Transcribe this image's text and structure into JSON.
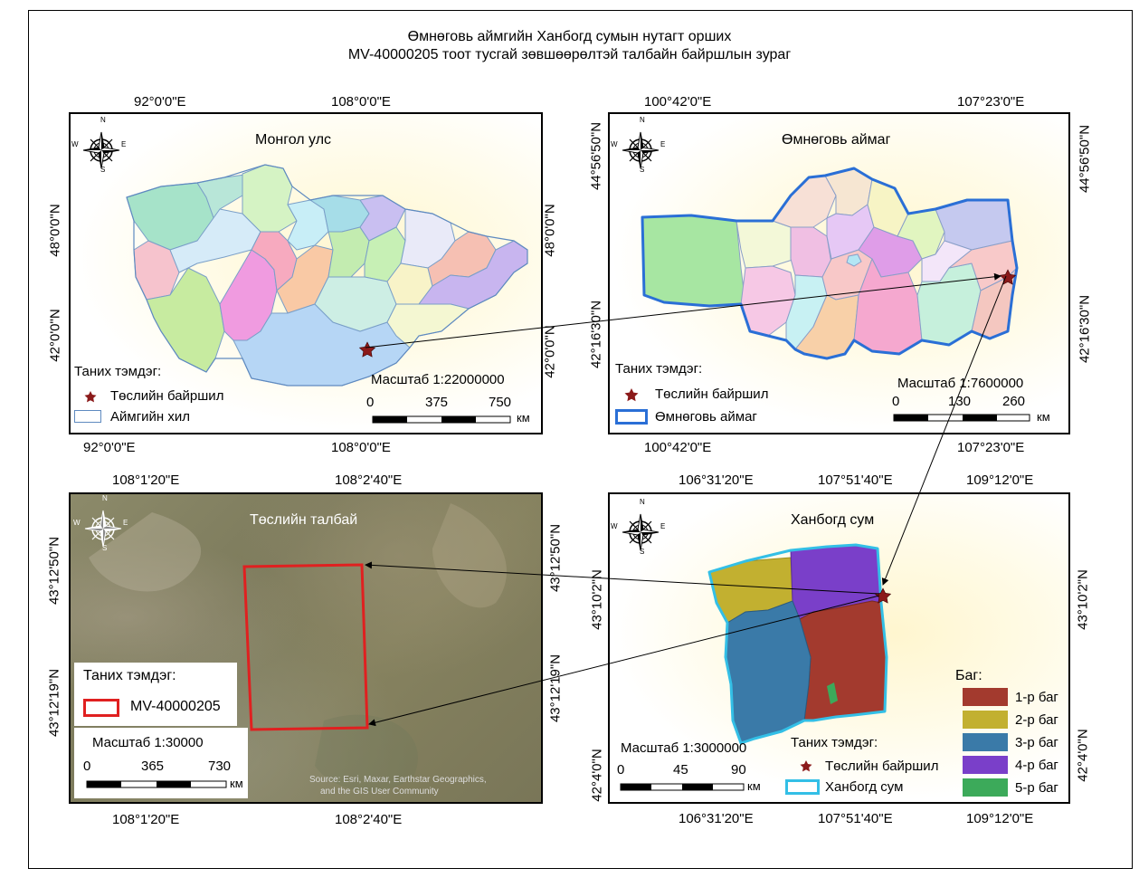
{
  "title": {
    "line1": "Өмнөговь аймгийн Ханбогд сумын нутагт орших",
    "line2": "MV-40000205 тоот тусгай зөвшөөрөлтэй талбайн байршлын зураг"
  },
  "compass": {
    "n": "N",
    "s": "S",
    "e": "E",
    "w": "W",
    "icon": "north-arrow-compass-icon"
  },
  "mongolia": {
    "title": "Монгол улс",
    "top_ticks": [
      "92°0'0\"E",
      "108°0'0\"E"
    ],
    "bottom_ticks": [
      "92°0'0\"E",
      "108°0'0\"E"
    ],
    "left_ticks": [
      "48°0'0\"N",
      "42°0'0\"N"
    ],
    "right_ticks": [
      "48°0'0\"N",
      "42°0'0\"N"
    ],
    "legend_title": "Таних тэмдэг:",
    "legend_project": "Төслийн байршил",
    "legend_boundary": "Аймгийн хил",
    "scale_label": "Масштаб 1:22000000",
    "scale_ticks": [
      "0",
      "375",
      "750"
    ],
    "scale_unit": "км"
  },
  "umnugovi": {
    "title": "Өмнөговь аймаг",
    "top_ticks": [
      "100°42'0\"E",
      "107°23'0\"E"
    ],
    "bottom_ticks": [
      "100°42'0\"E",
      "107°23'0\"E"
    ],
    "left_ticks": [
      "44°56'50\"N",
      "42°16'30\"N"
    ],
    "right_ticks": [
      "44°56'50\"N",
      "42°16'30\"N"
    ],
    "legend_title": "Таних тэмдэг:",
    "legend_project": "Төслийн байршил",
    "legend_boundary": "Өмнөговь аймаг",
    "scale_label": "Масштаб 1:7600000",
    "scale_ticks": [
      "0",
      "130",
      "260"
    ],
    "scale_unit": "км"
  },
  "site": {
    "title": "Төслийн талбай",
    "top_ticks": [
      "108°1'20\"E",
      "108°2'40\"E"
    ],
    "bottom_ticks": [
      "108°1'20\"E",
      "108°2'40\"E"
    ],
    "left_ticks": [
      "43°12'50\"N",
      "43°12'19\"N"
    ],
    "right_ticks": [
      "43°12'50\"N",
      "43°12'19\"N"
    ],
    "legend_title": "Таних тэмдэг:",
    "legend_area": "MV-40000205",
    "scale_label": "Масштаб 1:30000",
    "scale_ticks": [
      "0",
      "365",
      "730"
    ],
    "scale_unit": "км",
    "source_line1": "Source: Esri, Maxar, Earthstar Geographics,",
    "source_line2": "and the GIS User Community"
  },
  "khanbogd": {
    "title": "Ханбогд сум",
    "top_ticks": [
      "106°31'20\"E",
      "107°51'40\"E",
      "109°12'0\"E"
    ],
    "bottom_ticks": [
      "106°31'20\"E",
      "107°51'40\"E",
      "109°12'0\"E"
    ],
    "left_ticks": [
      "43°10'2\"N",
      "42°4'0\"N"
    ],
    "right_ticks": [
      "43°10'2\"N",
      "42°4'0\"N"
    ],
    "legend_title": "Таних тэмдэг:",
    "legend_project": "Төслийн байршил",
    "legend_boundary": "Ханбогд сум",
    "bag_title": "Баг:",
    "bags": [
      {
        "label": "1-р баг",
        "color": "#a33a2e"
      },
      {
        "label": "2-р баг",
        "color": "#c2b030"
      },
      {
        "label": "3-р баг",
        "color": "#3a7aa8"
      },
      {
        "label": "4-р баг",
        "color": "#7a3fc9"
      },
      {
        "label": "5-р баг",
        "color": "#3caa5a"
      }
    ],
    "scale_label": "Масштаб 1:3000000",
    "scale_ticks": [
      "0",
      "45",
      "90"
    ],
    "scale_unit": "км"
  },
  "colors": {
    "star": "#8b1a1a",
    "aimag_border": "#2a6fd6",
    "sum_border": "#33bfe6",
    "site_outline": "#e02020"
  }
}
